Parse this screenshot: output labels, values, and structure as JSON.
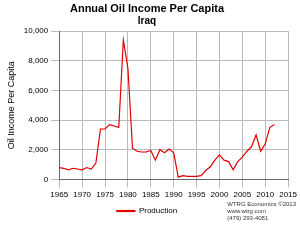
{
  "chart_data": {
    "type": "line",
    "title": "Annual Oil Income Per Capita",
    "subtitle": "Iraq",
    "y_label": "Oil Income Per Capita",
    "annotations": [
      "WTRG Economics ©2013",
      "www.wtrg.com",
      "(479) 293-4081"
    ],
    "x": [
      1965,
      1966,
      1967,
      1968,
      1969,
      1970,
      1971,
      1972,
      1973,
      1974,
      1975,
      1976,
      1977,
      1978,
      1979,
      1980,
      1981,
      1982,
      1983,
      1984,
      1985,
      1986,
      1987,
      1988,
      1989,
      1990,
      1991,
      1992,
      1993,
      1994,
      1995,
      1996,
      1997,
      1998,
      1999,
      2000,
      2001,
      2002,
      2003,
      2004,
      2005,
      2006,
      2007,
      2008,
      2009,
      2010,
      2011,
      2012
    ],
    "series": [
      {
        "name": "Production",
        "color": "#e00000",
        "values": [
          800,
          750,
          650,
          750,
          700,
          650,
          800,
          700,
          1100,
          3400,
          3400,
          3700,
          3600,
          3500,
          9400,
          7500,
          2100,
          1900,
          1850,
          1850,
          1950,
          1300,
          2000,
          1800,
          2050,
          1800,
          150,
          250,
          200,
          200,
          200,
          250,
          600,
          850,
          1300,
          1650,
          1300,
          1200,
          650,
          1200,
          1500,
          1900,
          2200,
          3000,
          1900,
          2400,
          3500,
          3700
        ]
      }
    ],
    "xlim": [
      1965,
      2015
    ],
    "xticks": [
      1965,
      1970,
      1975,
      1980,
      1985,
      1990,
      1995,
      2000,
      2005,
      2010,
      2015
    ],
    "ylim": [
      0,
      10000
    ],
    "yticks": [
      0,
      {
        "value": 2000,
        "label": "2,000"
      },
      {
        "value": 4000,
        "label": "4,000"
      },
      {
        "value": 6000,
        "label": "6,000"
      },
      {
        "value": 8000,
        "label": "8,000"
      },
      {
        "value": 10000,
        "label": "10,000"
      }
    ],
    "grid": true,
    "legend": "bottom"
  }
}
